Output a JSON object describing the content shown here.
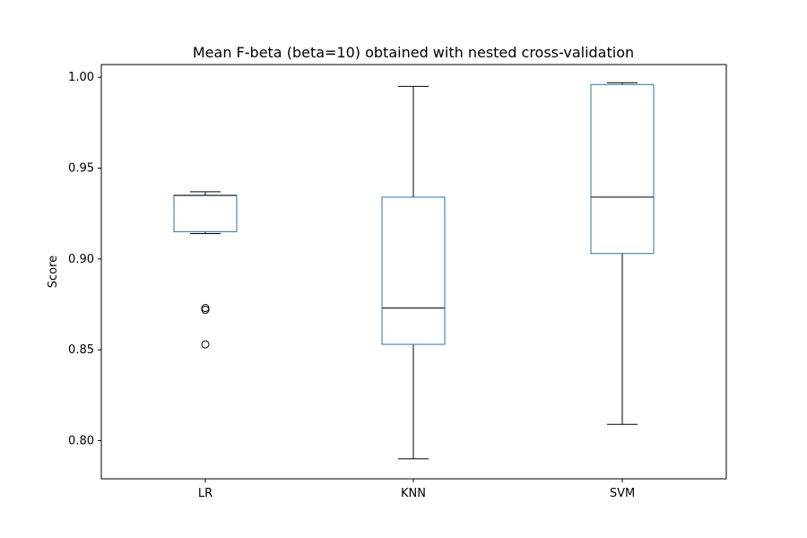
{
  "chart_data": {
    "type": "box",
    "title": "Mean F-beta (beta=10) obtained with nested cross-validation",
    "xlabel": "",
    "ylabel": "Score",
    "ylim": [
      0.779,
      1.007
    ],
    "yticks": [
      "0.80",
      "0.85",
      "0.90",
      "0.95",
      "1.00"
    ],
    "grid": false,
    "legend": "none",
    "colors": {
      "box": "#1f77b4",
      "whisker": "#000000",
      "median": "#000000",
      "flier": "#000000"
    },
    "categories": [
      "LR",
      "KNN",
      "SVM"
    ],
    "boxes": [
      {
        "label": "LR",
        "whisker_low": 0.914,
        "q1": 0.915,
        "median": 0.935,
        "q3": 0.935,
        "whisker_high": 0.937,
        "fliers": [
          0.873,
          0.872,
          0.853
        ]
      },
      {
        "label": "KNN",
        "whisker_low": 0.79,
        "q1": 0.853,
        "median": 0.873,
        "q3": 0.934,
        "whisker_high": 0.995,
        "fliers": []
      },
      {
        "label": "SVM",
        "whisker_low": 0.809,
        "q1": 0.903,
        "median": 0.934,
        "q3": 0.996,
        "whisker_high": 0.997,
        "fliers": []
      }
    ]
  }
}
